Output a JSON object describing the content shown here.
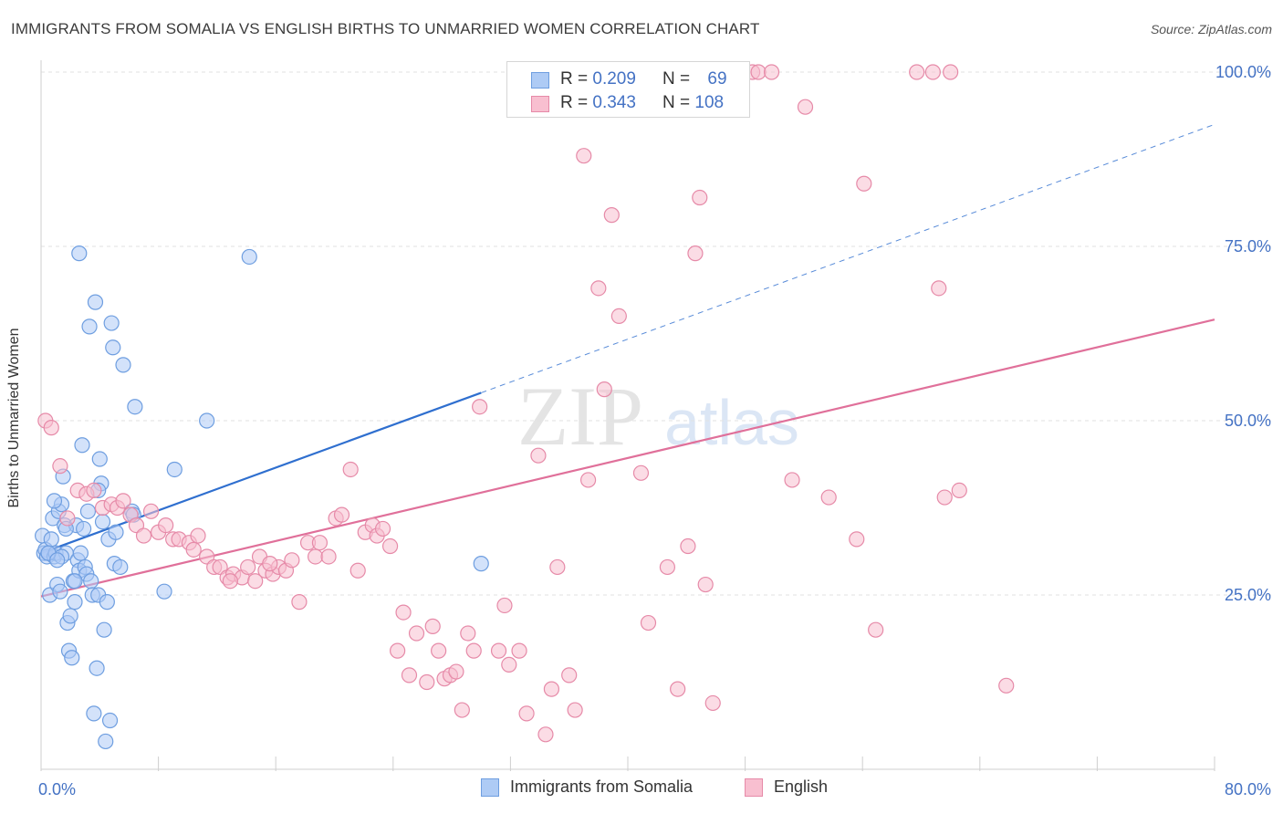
{
  "title": "IMMIGRANTS FROM SOMALIA VS ENGLISH BIRTHS TO UNMARRIED WOMEN CORRELATION CHART",
  "source": "Source: ZipAtlas.com",
  "watermark": {
    "zip": "ZIP",
    "atlas": "atlas"
  },
  "legend": {
    "rows": [
      {
        "r_label": "R = ",
        "r_value": "0.209",
        "n_label": "N = ",
        "n_value": "69",
        "fill": "#aecbf5",
        "stroke": "#6e9ee0"
      },
      {
        "r_label": "R = ",
        "r_value": "0.343",
        "n_label": "N = ",
        "n_value": "108",
        "fill": "#f8bfd0",
        "stroke": "#e68aa8"
      }
    ]
  },
  "bottom_legend": [
    {
      "label": "Immigrants from Somalia",
      "fill": "#aecbf5",
      "stroke": "#6e9ee0"
    },
    {
      "label": "English",
      "fill": "#f8bfd0",
      "stroke": "#e68aa8"
    }
  ],
  "chart_data": {
    "type": "scatter",
    "title": "IMMIGRANTS FROM SOMALIA VS ENGLISH BIRTHS TO UNMARRIED WOMEN CORRELATION CHART",
    "xlabel": "",
    "ylabel": "Births to Unmarried Women",
    "xlim": [
      0,
      80
    ],
    "ylim": [
      0,
      104
    ],
    "x_tick_labels": [
      {
        "value": 0,
        "label": "0.0%"
      },
      {
        "value": 80,
        "label": "80.0%"
      }
    ],
    "y_tick_labels": [
      {
        "value": 25,
        "label": "25.0%"
      },
      {
        "value": 50,
        "label": "50.0%"
      },
      {
        "value": 75,
        "label": "75.0%"
      },
      {
        "value": 100,
        "label": "100.0%"
      }
    ],
    "x_minor_ticks": [
      8,
      16,
      24,
      32,
      40,
      48,
      56,
      64,
      72
    ],
    "grid": true,
    "legend_position": "top-center",
    "colors": {
      "somalia_line": "#2f6fcf",
      "english_line": "#e0709a",
      "axis_text": "#4472c4"
    },
    "series": [
      {
        "name": "Immigrants from Somalia",
        "color": "#6e9ee0",
        "fill": "#aecbf5",
        "trend": {
          "x": [
            0,
            30
          ],
          "y": [
            31.0,
            54.0
          ],
          "dashed_x": [
            30,
            80
          ],
          "dashed_y": [
            54.0,
            92.5
          ]
        },
        "points": [
          [
            0.1,
            33.5
          ],
          [
            0.2,
            31
          ],
          [
            0.3,
            31.5
          ],
          [
            0.4,
            30.5
          ],
          [
            0.5,
            31
          ],
          [
            0.6,
            25
          ],
          [
            0.7,
            33
          ],
          [
            0.8,
            36
          ],
          [
            0.9,
            30.5
          ],
          [
            1.0,
            31
          ],
          [
            1.1,
            26.5
          ],
          [
            1.2,
            37
          ],
          [
            1.3,
            25.5
          ],
          [
            1.4,
            38
          ],
          [
            1.5,
            42
          ],
          [
            1.6,
            35
          ],
          [
            1.7,
            31
          ],
          [
            1.8,
            21
          ],
          [
            1.9,
            17
          ],
          [
            2.0,
            22
          ],
          [
            2.1,
            16
          ],
          [
            2.2,
            27
          ],
          [
            2.3,
            24
          ],
          [
            2.4,
            35
          ],
          [
            2.5,
            30
          ],
          [
            2.6,
            28.5
          ],
          [
            2.7,
            31
          ],
          [
            2.8,
            46.5
          ],
          [
            2.9,
            34.5
          ],
          [
            3.0,
            29
          ],
          [
            3.1,
            28
          ],
          [
            3.2,
            37
          ],
          [
            3.3,
            63.5
          ],
          [
            3.4,
            27
          ],
          [
            3.5,
            25
          ],
          [
            3.6,
            8
          ],
          [
            3.7,
            67
          ],
          [
            3.8,
            14.5
          ],
          [
            3.9,
            25
          ],
          [
            4.0,
            44.5
          ],
          [
            4.1,
            41
          ],
          [
            4.2,
            35.5
          ],
          [
            4.3,
            20
          ],
          [
            4.4,
            4
          ],
          [
            4.5,
            24
          ],
          [
            4.6,
            33
          ],
          [
            4.7,
            7
          ],
          [
            4.8,
            64
          ],
          [
            4.9,
            60.5
          ],
          [
            5.0,
            29.5
          ],
          [
            5.1,
            34
          ],
          [
            5.4,
            29
          ],
          [
            5.6,
            58
          ],
          [
            6.2,
            37
          ],
          [
            6.3,
            36.5
          ],
          [
            6.4,
            52
          ],
          [
            8.4,
            25.5
          ],
          [
            9.1,
            43
          ],
          [
            11.3,
            50
          ],
          [
            14.2,
            73.5
          ],
          [
            2.6,
            74
          ],
          [
            1.7,
            34.5
          ],
          [
            0.9,
            38.5
          ],
          [
            1.4,
            30.5
          ],
          [
            0.5,
            31
          ],
          [
            2.3,
            27
          ],
          [
            3.9,
            40
          ],
          [
            1.1,
            30
          ],
          [
            30.0,
            29.5
          ]
        ]
      },
      {
        "name": "English",
        "color": "#e68aa8",
        "fill": "#f8bfd0",
        "trend": {
          "x": [
            0,
            80
          ],
          "y": [
            24.8,
            64.5
          ]
        },
        "points": [
          [
            0.3,
            50
          ],
          [
            0.7,
            49
          ],
          [
            1.3,
            43.5
          ],
          [
            1.8,
            36
          ],
          [
            2.5,
            40
          ],
          [
            3.1,
            39.5
          ],
          [
            3.6,
            40
          ],
          [
            4.2,
            37.5
          ],
          [
            4.8,
            38
          ],
          [
            5.2,
            37.5
          ],
          [
            5.6,
            38.5
          ],
          [
            6.1,
            36.5
          ],
          [
            6.5,
            35
          ],
          [
            7.0,
            33.5
          ],
          [
            7.5,
            37
          ],
          [
            8.0,
            34
          ],
          [
            8.5,
            35
          ],
          [
            9.0,
            33
          ],
          [
            9.4,
            33
          ],
          [
            10.1,
            32.5
          ],
          [
            10.4,
            31.5
          ],
          [
            10.7,
            33.5
          ],
          [
            11.3,
            30.5
          ],
          [
            11.8,
            29
          ],
          [
            12.2,
            29
          ],
          [
            12.7,
            27.5
          ],
          [
            13.1,
            28
          ],
          [
            13.7,
            27.5
          ],
          [
            14.1,
            29
          ],
          [
            14.6,
            27
          ],
          [
            14.9,
            30.5
          ],
          [
            15.3,
            28.5
          ],
          [
            15.8,
            28
          ],
          [
            16.2,
            29
          ],
          [
            16.7,
            28.5
          ],
          [
            17.1,
            30
          ],
          [
            17.6,
            24
          ],
          [
            18.2,
            32.5
          ],
          [
            18.7,
            30.5
          ],
          [
            19.0,
            32.5
          ],
          [
            19.6,
            30.5
          ],
          [
            20.1,
            36
          ],
          [
            20.5,
            36.5
          ],
          [
            21.1,
            43
          ],
          [
            21.6,
            28.5
          ],
          [
            22.1,
            34
          ],
          [
            22.6,
            35
          ],
          [
            22.9,
            33.5
          ],
          [
            23.3,
            34.5
          ],
          [
            23.8,
            32
          ],
          [
            24.3,
            17
          ],
          [
            24.7,
            22.5
          ],
          [
            25.1,
            13.5
          ],
          [
            25.6,
            19.5
          ],
          [
            26.3,
            12.5
          ],
          [
            26.7,
            20.5
          ],
          [
            27.1,
            17
          ],
          [
            27.5,
            13
          ],
          [
            27.9,
            13.5
          ],
          [
            28.3,
            14
          ],
          [
            28.7,
            8.5
          ],
          [
            29.1,
            19.5
          ],
          [
            29.5,
            17
          ],
          [
            29.9,
            52
          ],
          [
            31.2,
            17
          ],
          [
            31.6,
            23.5
          ],
          [
            32.6,
            17
          ],
          [
            33.1,
            8
          ],
          [
            33.9,
            45
          ],
          [
            34.4,
            5
          ],
          [
            34.8,
            11.5
          ],
          [
            35.2,
            29
          ],
          [
            36.0,
            13.5
          ],
          [
            36.4,
            8.5
          ],
          [
            37.0,
            88
          ],
          [
            37.3,
            41.5
          ],
          [
            38.0,
            69
          ],
          [
            38.4,
            54.5
          ],
          [
            38.9,
            79.5
          ],
          [
            39.4,
            65
          ],
          [
            40.9,
            42.5
          ],
          [
            41.4,
            21
          ],
          [
            42.7,
            29
          ],
          [
            43.4,
            11.5
          ],
          [
            44.1,
            32
          ],
          [
            44.6,
            74
          ],
          [
            44.9,
            82
          ],
          [
            45.3,
            26.5
          ],
          [
            45.8,
            9.5
          ],
          [
            48.5,
            100
          ],
          [
            48.9,
            100
          ],
          [
            49.8,
            100
          ],
          [
            51.2,
            41.5
          ],
          [
            52.1,
            95
          ],
          [
            53.7,
            39
          ],
          [
            55.6,
            33
          ],
          [
            56.1,
            84
          ],
          [
            56.9,
            20
          ],
          [
            59.7,
            100
          ],
          [
            60.8,
            100
          ],
          [
            61.2,
            69
          ],
          [
            62.0,
            100
          ],
          [
            61.6,
            39
          ],
          [
            62.6,
            40
          ],
          [
            65.8,
            12
          ],
          [
            15.6,
            29.5
          ],
          [
            12.9,
            27
          ],
          [
            31.9,
            15
          ]
        ]
      }
    ]
  }
}
